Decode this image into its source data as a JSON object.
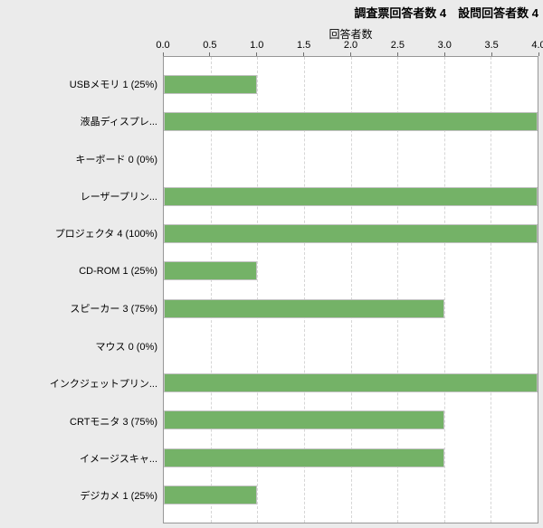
{
  "header": {
    "title": "調査票回答者数 4　設問回答者数 4"
  },
  "chart_data": {
    "type": "bar",
    "orientation": "horizontal",
    "title": "調査票回答者数 4　設問回答者数 4",
    "xlabel": "回答者数",
    "xlim": [
      0,
      4
    ],
    "xtick_labels": [
      "0.0",
      "0.5",
      "1.0",
      "1.5",
      "2.0",
      "2.5",
      "3.0",
      "3.5",
      "4.0"
    ],
    "grid": true,
    "legend": false,
    "categories": [
      "USBメモリ 1 (25%)",
      "液晶ディスプレ...",
      "キーボード 0 (0%)",
      "レーザープリン...",
      "プロジェクタ 4 (100%)",
      "CD-ROM 1 (25%)",
      "スピーカー 3 (75%)",
      "マウス 0 (0%)",
      "インクジェットプリン...",
      "CRTモニタ 3 (75%)",
      "イメージスキャ...",
      "デジカメ 1 (25%)"
    ],
    "values": [
      1,
      4,
      0,
      4,
      4,
      1,
      3,
      0,
      4,
      3,
      3,
      1
    ],
    "colors": {
      "bar_fill": "#74b267",
      "bar_border": "#c2c2c2",
      "plot_bg": "#ffffff",
      "page_bg": "#ebebeb",
      "grid_color": "#d6d6d6",
      "plot_border": "#979797"
    }
  }
}
